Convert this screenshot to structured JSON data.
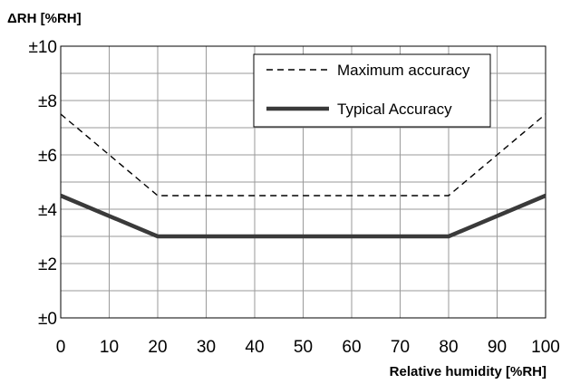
{
  "chart_data": {
    "type": "line",
    "ylabel": "ΔRH [%RH]",
    "xlabel": "Relative humidity [%RH]",
    "x_ticks": [
      "0",
      "10",
      "20",
      "30",
      "40",
      "50",
      "60",
      "70",
      "80",
      "90",
      "100"
    ],
    "y_ticks": [
      "±0",
      "±2",
      "±4",
      "±6",
      "±8",
      "±10"
    ],
    "xlim": [
      0,
      100
    ],
    "ylim": [
      0,
      10
    ],
    "grid": true,
    "legend_position": "top-right",
    "series": [
      {
        "name": "Maximum accuracy",
        "style": "dashed",
        "color": "#000000",
        "x": [
          0,
          20,
          80,
          100
        ],
        "y": [
          7.5,
          4.5,
          4.5,
          7.5
        ]
      },
      {
        "name": "Typical Accuracy",
        "style": "solid-thick",
        "color": "#3a3a3a",
        "x": [
          0,
          20,
          80,
          100
        ],
        "y": [
          4.5,
          3,
          3,
          4.5
        ]
      }
    ]
  }
}
